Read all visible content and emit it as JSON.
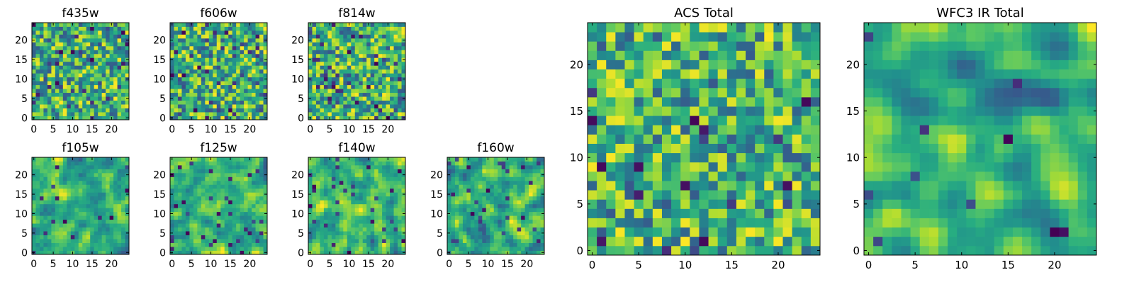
{
  "chart_data": [
    {
      "type": "heatmap",
      "title": "f435w",
      "x_ticks": [
        0,
        5,
        10,
        15,
        20
      ],
      "y_ticks": [
        0,
        5,
        10,
        15,
        20
      ],
      "xlim": [
        0,
        25
      ],
      "ylim": [
        0,
        25
      ],
      "grid_size": 25,
      "grid": false,
      "colormap": "viridis",
      "seed": 11,
      "smoothing": 0,
      "outlier_rate": 0.06
    },
    {
      "type": "heatmap",
      "title": "f606w",
      "x_ticks": [
        0,
        5,
        10,
        15,
        20
      ],
      "y_ticks": [
        0,
        5,
        10,
        15,
        20
      ],
      "xlim": [
        0,
        25
      ],
      "ylim": [
        0,
        25
      ],
      "grid_size": 25,
      "grid": false,
      "colormap": "viridis",
      "seed": 23,
      "smoothing": 0,
      "outlier_rate": 0.06
    },
    {
      "type": "heatmap",
      "title": "f814w",
      "x_ticks": [
        0,
        5,
        10,
        15,
        20
      ],
      "y_ticks": [
        0,
        5,
        10,
        15,
        20
      ],
      "xlim": [
        0,
        25
      ],
      "ylim": [
        0,
        25
      ],
      "grid_size": 25,
      "grid": false,
      "colormap": "viridis",
      "seed": 37,
      "smoothing": 0,
      "outlier_rate": 0.06
    },
    {
      "type": "heatmap",
      "title": "f105w",
      "x_ticks": [
        0,
        5,
        10,
        15,
        20
      ],
      "y_ticks": [
        0,
        5,
        10,
        15,
        20
      ],
      "xlim": [
        0,
        25
      ],
      "ylim": [
        0,
        25
      ],
      "grid_size": 25,
      "grid": false,
      "colormap": "viridis",
      "seed": 41,
      "smoothing": 1,
      "outlier_rate": 0.03
    },
    {
      "type": "heatmap",
      "title": "f125w",
      "x_ticks": [
        0,
        5,
        10,
        15,
        20
      ],
      "y_ticks": [
        0,
        5,
        10,
        15,
        20
      ],
      "xlim": [
        0,
        25
      ],
      "ylim": [
        0,
        25
      ],
      "grid_size": 25,
      "grid": false,
      "colormap": "viridis",
      "seed": 53,
      "smoothing": 1,
      "outlier_rate": 0.04
    },
    {
      "type": "heatmap",
      "title": "f140w",
      "x_ticks": [
        0,
        5,
        10,
        15,
        20
      ],
      "y_ticks": [
        0,
        5,
        10,
        15,
        20
      ],
      "xlim": [
        0,
        25
      ],
      "ylim": [
        0,
        25
      ],
      "grid_size": 25,
      "grid": false,
      "colormap": "viridis",
      "seed": 67,
      "smoothing": 1,
      "outlier_rate": 0.04
    },
    {
      "type": "heatmap",
      "title": "f160w",
      "x_ticks": [
        0,
        5,
        10,
        15,
        20
      ],
      "y_ticks": [
        0,
        5,
        10,
        15,
        20
      ],
      "xlim": [
        0,
        25
      ],
      "ylim": [
        0,
        25
      ],
      "grid_size": 25,
      "grid": false,
      "colormap": "viridis",
      "seed": 79,
      "smoothing": 1,
      "outlier_rate": 0.04
    },
    {
      "type": "heatmap",
      "title": "ACS Total",
      "x_ticks": [
        0,
        5,
        10,
        15,
        20
      ],
      "y_ticks": [
        0,
        5,
        10,
        15,
        20
      ],
      "xlim": [
        0,
        25
      ],
      "ylim": [
        0,
        25
      ],
      "grid_size": 25,
      "grid": false,
      "colormap": "viridis",
      "seed": 83,
      "smoothing": 0,
      "outlier_rate": 0.02
    },
    {
      "type": "heatmap",
      "title": "WFC3 IR Total",
      "x_ticks": [
        0,
        5,
        10,
        15,
        20
      ],
      "y_ticks": [
        0,
        5,
        10,
        15,
        20
      ],
      "xlim": [
        0,
        25
      ],
      "ylim": [
        0,
        25
      ],
      "grid_size": 25,
      "grid": false,
      "colormap": "viridis",
      "seed": 97,
      "smoothing": 2,
      "outlier_rate": 0.02
    }
  ]
}
